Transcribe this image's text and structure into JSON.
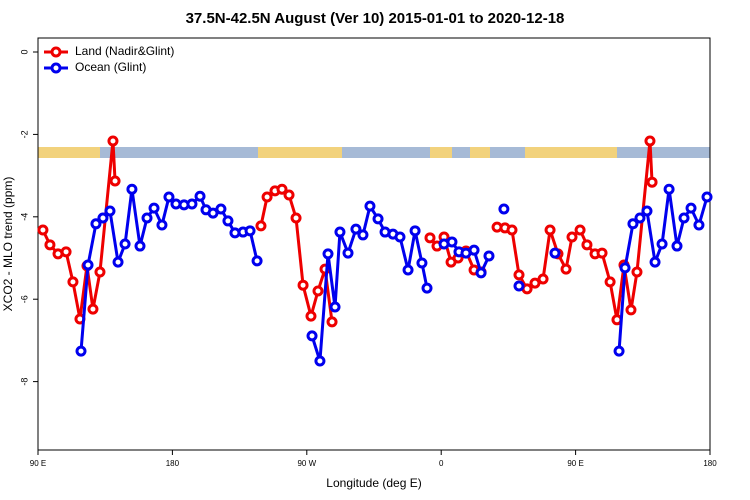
{
  "chart_data": {
    "type": "line",
    "title": "37.5N-42.5N August (Ver 10)   2015-01-01 to 2020-12-18",
    "x_label": "Longitude (deg E)",
    "y_label": "XCO2 - MLO trend (ppm)",
    "xlim": [
      90,
      540
    ],
    "xticks": [
      {
        "value": 90,
        "label": "90 E"
      },
      {
        "value": 180,
        "label": "180"
      },
      {
        "value": 270,
        "label": "90 W"
      },
      {
        "value": 360,
        "label": "0"
      },
      {
        "value": 450,
        "label": "90 E"
      },
      {
        "value": 540,
        "label": "180"
      }
    ],
    "ylim": [
      -9.66,
      0.34
    ],
    "yticks": [
      0,
      -2,
      -4,
      -6,
      -8
    ],
    "legend": "top-left",
    "series": [
      {
        "name": "Land (Nadir&Glint)",
        "color": "#ee0000",
        "x": [
          93.3,
          98,
          103.4,
          108.8,
          113.4,
          118.1,
          122.8,
          126.8,
          131.5,
          140.2,
          141.6,
          null,
          239.3,
          243.4,
          248.7,
          253.4,
          258.1,
          262.8,
          267.5,
          272.8,
          277.5,
          282.2,
          286.9,
          null,
          352.5,
          357.2,
          361.9,
          366.6,
          371.3,
          376.6,
          382,
          386.7,
          null,
          397.4,
          402.7,
          407.4,
          412.1,
          417.5,
          422.8,
          428.2,
          432.9,
          438.2,
          443.6,
          447.6,
          453,
          457.6,
          463,
          467.7,
          473.1,
          477.7,
          482.4,
          487.1,
          491.1,
          499.8,
          501.2
        ],
        "values": [
          -4.32,
          -4.68,
          -4.9,
          -4.85,
          -5.58,
          -6.48,
          -5.19,
          -6.24,
          -5.34,
          -2.16,
          -3.13,
          null,
          -4.22,
          -3.52,
          -3.37,
          -3.33,
          -3.47,
          -4.03,
          -5.66,
          -6.41,
          -5.8,
          -5.27,
          -6.55,
          null,
          -4.51,
          -4.71,
          -4.49,
          -5.1,
          -5.0,
          -4.83,
          -5.29,
          -5.34,
          null,
          -4.25,
          -4.27,
          -4.32,
          -5.41,
          -5.75,
          -5.61,
          -5.51,
          -4.32,
          -4.9,
          -5.27,
          -4.49,
          -4.32,
          -4.68,
          -4.9,
          -4.88,
          -5.58,
          -6.5,
          -5.17,
          -6.26,
          -5.34,
          -2.16,
          -3.16
        ]
      },
      {
        "name": "Ocean (Glint)",
        "color": "#0000ee",
        "x": [
          118.8,
          123.5,
          128.8,
          133.5,
          138.2,
          143.6,
          148.3,
          152.9,
          158.3,
          163,
          167.7,
          173,
          177.7,
          182.4,
          187.8,
          193.1,
          198.5,
          202.5,
          207.2,
          212.5,
          217.2,
          221.9,
          227.3,
          232,
          236.7,
          null,
          273.5,
          278.8,
          284.2,
          288.9,
          292.2,
          297.6,
          302.9,
          307.6,
          312.3,
          317.7,
          322.4,
          327.7,
          332.4,
          337.8,
          342.5,
          347.1,
          350.5,
          null,
          361.9,
          367.2,
          371.9,
          376.6,
          382,
          386.7,
          392,
          null,
          402,
          null,
          412.1,
          null,
          436.2,
          null,
          479.1,
          483.1,
          488.4,
          493.1,
          497.8,
          503.2,
          507.9,
          512.6,
          517.9,
          522.6,
          527.3,
          532.6,
          538
        ],
        "values": [
          -7.26,
          -5.17,
          -4.17,
          -4.03,
          -3.86,
          -5.1,
          -4.66,
          -3.33,
          -4.71,
          -4.03,
          -3.79,
          -4.2,
          -3.52,
          -3.69,
          -3.71,
          -3.69,
          -3.5,
          -3.83,
          -3.91,
          -3.81,
          -4.1,
          -4.39,
          -4.37,
          -4.34,
          -5.07,
          null,
          -6.89,
          -7.5,
          -4.9,
          -6.19,
          -4.37,
          -4.88,
          -4.3,
          -4.44,
          -3.74,
          -4.05,
          -4.37,
          -4.42,
          -4.49,
          -5.29,
          -4.34,
          -5.12,
          -5.73,
          null,
          -4.66,
          -4.61,
          -4.85,
          -4.88,
          -4.81,
          -5.36,
          -4.95,
          null,
          -3.81,
          null,
          -5.68,
          null,
          -4.88,
          null,
          -7.26,
          -5.24,
          -4.17,
          -4.03,
          -3.86,
          -5.1,
          -4.66,
          -3.33,
          -4.71,
          -4.03,
          -3.79,
          -4.2,
          -3.52
        ]
      }
    ]
  }
}
